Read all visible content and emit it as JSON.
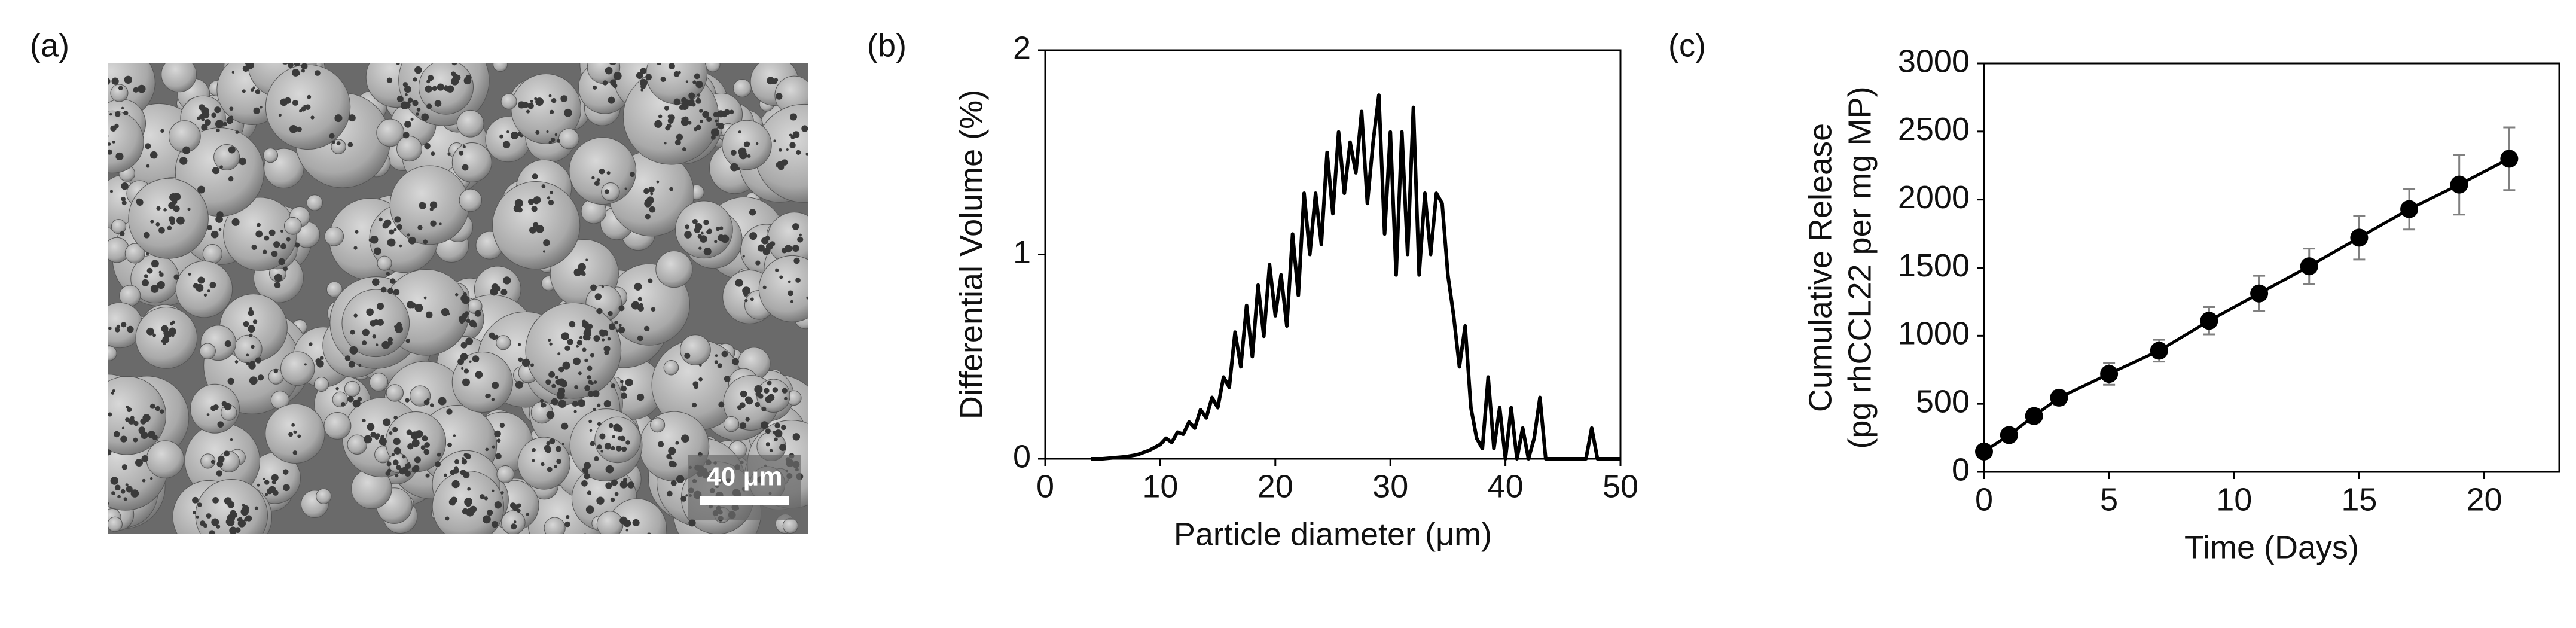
{
  "chart_data": [
    {
      "type": "image",
      "panel_label": "(a)",
      "scale_bar_label": "40 μm"
    },
    {
      "type": "line",
      "panel_label": "(b)",
      "xlabel": "Particle diameter (μm)",
      "ylabel": "Differential Volume (%)",
      "color": "#000000",
      "xlim": [
        0,
        50
      ],
      "xticks": [
        0,
        10,
        20,
        30,
        40,
        50
      ],
      "ylim": [
        0,
        2
      ],
      "yticks": [
        0,
        1,
        2
      ],
      "grid": false,
      "x": [
        4,
        5,
        6,
        7,
        8,
        9,
        10,
        10.5,
        11,
        11.5,
        12,
        12.5,
        13,
        13.5,
        14,
        14.5,
        15,
        15.5,
        16,
        16.5,
        17,
        17.5,
        18,
        18.5,
        19,
        19.5,
        20,
        20.5,
        21,
        21.5,
        22,
        22.5,
        23,
        23.5,
        24,
        24.5,
        25,
        25.5,
        26,
        26.5,
        27,
        27.5,
        28,
        28.5,
        29,
        29.5,
        30,
        30.5,
        31,
        31.5,
        32,
        32.5,
        33,
        33.5,
        34,
        34.5,
        35,
        35.5,
        36,
        36.5,
        37,
        37.5,
        38,
        38.5,
        39,
        39.5,
        40,
        40.5,
        41,
        41.5,
        42,
        42.5,
        43,
        43.5,
        44,
        46,
        47,
        47.5,
        48,
        50
      ],
      "values": [
        0,
        0,
        0.005,
        0.01,
        0.02,
        0.04,
        0.07,
        0.1,
        0.08,
        0.13,
        0.12,
        0.18,
        0.15,
        0.24,
        0.2,
        0.3,
        0.25,
        0.4,
        0.35,
        0.62,
        0.45,
        0.75,
        0.5,
        0.85,
        0.6,
        0.95,
        0.7,
        0.9,
        0.65,
        1.1,
        0.8,
        1.3,
        1.0,
        1.3,
        1.05,
        1.5,
        1.2,
        1.6,
        1.3,
        1.55,
        1.4,
        1.7,
        1.25,
        1.55,
        1.78,
        1.1,
        1.6,
        0.9,
        1.6,
        1.0,
        1.72,
        0.9,
        1.3,
        1.0,
        1.3,
        1.25,
        0.9,
        0.7,
        0.45,
        0.65,
        0.25,
        0.1,
        0.05,
        0.4,
        0.05,
        0.25,
        0,
        0.25,
        0,
        0.15,
        0,
        0.1,
        0.3,
        0,
        0,
        0,
        0,
        0.15,
        0,
        0
      ]
    },
    {
      "type": "errorline",
      "panel_label": "(c)",
      "xlabel": "Time (Days)",
      "ylabel": [
        "Cumulative Release",
        "(pg rhCCL22 per mg MP)"
      ],
      "color": "#000000",
      "error_color": "#808080",
      "xlim": [
        0,
        23
      ],
      "xticks": [
        0,
        5,
        10,
        15,
        20
      ],
      "ylim": [
        0,
        3000
      ],
      "yticks": [
        0,
        500,
        1000,
        1500,
        2000,
        2500,
        3000
      ],
      "grid": false,
      "x": [
        0,
        1,
        2,
        3,
        5,
        7,
        9,
        11,
        13,
        15,
        17,
        19,
        21
      ],
      "values": [
        150,
        270,
        410,
        545,
        720,
        890,
        1110,
        1310,
        1510,
        1720,
        1930,
        2110,
        2300
      ],
      "errors": [
        30,
        30,
        50,
        50,
        80,
        80,
        100,
        130,
        130,
        160,
        150,
        220,
        230
      ]
    }
  ]
}
